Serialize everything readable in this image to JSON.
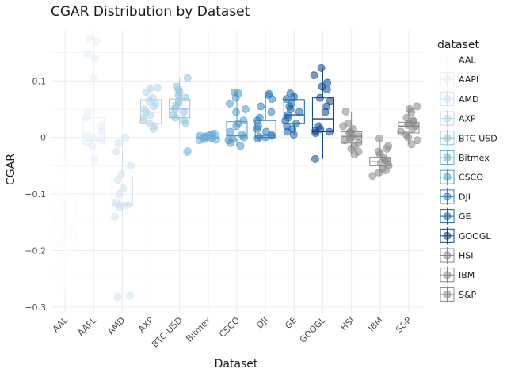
{
  "chart_data": {
    "type": "boxplot+jitter",
    "title": "CGAR Distribution by Dataset",
    "xlabel": "Dataset",
    "ylabel": "CGAR",
    "ylim": [
      -0.31,
      0.19
    ],
    "y_ticks": [
      0.1,
      0,
      -0.1,
      -0.2,
      -0.3
    ],
    "y_tick_labels": [
      "0.1",
      "0",
      "−0.1",
      "−0.2",
      "−0.3"
    ],
    "grid": true,
    "legend": {
      "title": "dataset",
      "position": "right"
    },
    "categories": [
      "AAL",
      "AAPL",
      "AMD",
      "AXP",
      "BTC-USD",
      "Bitmex",
      "CSCO",
      "DJI",
      "GE",
      "GOOGL",
      "HSI",
      "IBM",
      "S&P"
    ],
    "colors": [
      "#f7fbff",
      "#e3eef9",
      "#cfe1f2",
      "#b5d4e9",
      "#93c4de",
      "#6daed5",
      "#4a97c9",
      "#2e7ebc",
      "#1764ab",
      "#08468b",
      "#888888",
      "#888888",
      "#888888"
    ],
    "series": [
      {
        "name": "AAL",
        "q1": -0.185,
        "median": -0.165,
        "q3": -0.11,
        "whisker_low": -0.27,
        "whisker_high": -0.04,
        "points": [
          -0.04,
          -0.06,
          -0.09,
          -0.1,
          -0.12,
          -0.14,
          -0.15,
          -0.16,
          -0.17,
          -0.18,
          -0.19,
          -0.2,
          -0.21,
          -0.24,
          -0.27
        ]
      },
      {
        "name": "AAPL",
        "q1": -0.015,
        "median": -0.005,
        "q3": 0.035,
        "whisker_low": -0.04,
        "whisker_high": 0.175,
        "points": [
          0.175,
          0.17,
          0.148,
          0.14,
          0.104,
          0.045,
          0.035,
          0.02,
          0.01,
          0.005,
          0.0,
          -0.005,
          -0.01,
          -0.015,
          -0.04
        ]
      },
      {
        "name": "AMD",
        "q1": -0.12,
        "median": -0.118,
        "q3": -0.07,
        "whisker_low": -0.14,
        "whisker_high": 0.0,
        "points": [
          0.0,
          -0.01,
          -0.025,
          -0.05,
          -0.065,
          -0.075,
          -0.09,
          -0.1,
          -0.115,
          -0.12,
          -0.12,
          -0.125,
          -0.14,
          -0.28,
          -0.282
        ]
      },
      {
        "name": "AXP",
        "q1": 0.025,
        "median": 0.045,
        "q3": 0.067,
        "whisker_low": 0.012,
        "whisker_high": 0.09,
        "points": [
          0.088,
          0.087,
          0.08,
          0.07,
          0.065,
          0.06,
          0.055,
          0.05,
          0.045,
          0.04,
          0.035,
          0.03,
          0.025,
          0.02,
          0.015
        ]
      },
      {
        "name": "BTC-USD",
        "q1": 0.035,
        "median": 0.05,
        "q3": 0.068,
        "whisker_low": 0.022,
        "whisker_high": 0.105,
        "points": [
          0.105,
          0.09,
          0.085,
          0.08,
          0.075,
          0.07,
          0.065,
          0.06,
          0.055,
          0.05,
          0.045,
          0.04,
          0.035,
          0.03,
          0.025,
          -0.024,
          -0.026
        ]
      },
      {
        "name": "Bitmex",
        "q1": -0.002,
        "median": 0.0,
        "q3": 0.005,
        "whisker_low": -0.006,
        "whisker_high": 0.008,
        "points": [
          0.007,
          0.006,
          0.005,
          0.004,
          0.003,
          0.002,
          0.001,
          0.0,
          0.0,
          -0.001,
          -0.002,
          -0.003,
          -0.004,
          -0.005
        ]
      },
      {
        "name": "CSCO",
        "q1": -0.003,
        "median": 0.003,
        "q3": 0.028,
        "whisker_low": -0.015,
        "whisker_high": 0.08,
        "points": [
          0.08,
          0.078,
          0.07,
          0.06,
          0.05,
          0.045,
          0.03,
          0.025,
          0.02,
          0.01,
          0.005,
          0.0,
          -0.003,
          -0.005,
          -0.01,
          -0.015
        ]
      },
      {
        "name": "DJI",
        "q1": 0.0,
        "median": 0.004,
        "q3": 0.03,
        "whisker_low": -0.002,
        "whisker_high": 0.077,
        "points": [
          0.077,
          0.075,
          0.068,
          0.055,
          0.045,
          0.035,
          0.03,
          0.02,
          0.015,
          0.01,
          0.005,
          0.003,
          0.001,
          0.0,
          -0.002
        ]
      },
      {
        "name": "GE",
        "q1": 0.025,
        "median": 0.04,
        "q3": 0.067,
        "whisker_low": 0.005,
        "whisker_high": 0.078,
        "points": [
          0.078,
          0.072,
          0.068,
          0.06,
          0.055,
          0.05,
          0.045,
          0.04,
          0.035,
          0.03,
          0.025,
          0.02,
          0.015,
          0.01,
          0.005
        ]
      },
      {
        "name": "GOOGL",
        "q1": 0.01,
        "median": 0.033,
        "q3": 0.07,
        "whisker_low": -0.038,
        "whisker_high": 0.123,
        "points": [
          0.123,
          0.11,
          0.097,
          0.09,
          0.085,
          0.07,
          0.065,
          0.055,
          0.045,
          0.02,
          0.015,
          0.012,
          0.01,
          0.008,
          -0.038
        ]
      },
      {
        "name": "HSI",
        "q1": -0.01,
        "median": 0.002,
        "q3": 0.01,
        "whisker_low": -0.03,
        "whisker_high": 0.046,
        "points": [
          0.046,
          0.025,
          0.02,
          0.015,
          0.01,
          0.008,
          0.005,
          0.002,
          0.0,
          -0.003,
          -0.005,
          -0.01,
          -0.015,
          -0.02,
          -0.025,
          -0.03
        ]
      },
      {
        "name": "IBM",
        "q1": -0.05,
        "median": -0.042,
        "q3": -0.035,
        "whisker_low": -0.068,
        "whisker_high": -0.002,
        "points": [
          -0.002,
          -0.015,
          -0.02,
          -0.025,
          -0.03,
          -0.035,
          -0.04,
          -0.042,
          -0.045,
          -0.05,
          -0.055,
          -0.058,
          -0.062,
          -0.068
        ]
      },
      {
        "name": "S&P",
        "q1": 0.008,
        "median": 0.02,
        "q3": 0.027,
        "whisker_low": -0.012,
        "whisker_high": 0.055,
        "points": [
          0.055,
          0.05,
          0.045,
          0.035,
          0.03,
          0.028,
          0.025,
          0.022,
          0.02,
          0.015,
          0.01,
          0.005,
          0.0,
          -0.005,
          -0.012
        ]
      }
    ]
  }
}
